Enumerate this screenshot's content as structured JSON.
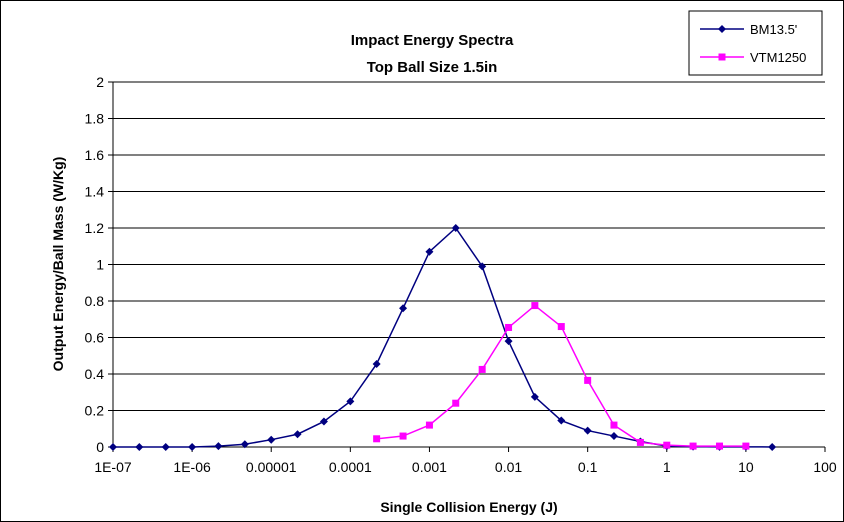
{
  "chart_data": {
    "type": "line",
    "title": "Impact Energy Spectra",
    "subtitle": "Top Ball Size 1.5in",
    "xlabel": "Single Collision Energy (J)",
    "ylabel": "Output Energy/Ball Mass (W/Kg)",
    "x_scale": "log",
    "xlim": [
      1e-07,
      100
    ],
    "ylim": [
      0,
      2
    ],
    "x_tick_labels": [
      "1E-07",
      "1E-06",
      "0.00001",
      "0.0001",
      "0.001",
      "0.01",
      "0.1",
      "1",
      "10",
      "100"
    ],
    "y_tick_labels": [
      "0",
      "0.2",
      "0.4",
      "0.6",
      "0.8",
      "1",
      "1.2",
      "1.4",
      "1.6",
      "1.8",
      "2"
    ],
    "grid": "horizontal",
    "legend_position": "top-right",
    "series": [
      {
        "name": "BM13.5'",
        "color": "#000080",
        "marker": "diamond",
        "x": [
          1e-07,
          2.15e-07,
          4.64e-07,
          1e-06,
          2.15e-06,
          4.64e-06,
          1e-05,
          2.15e-05,
          4.64e-05,
          0.0001,
          0.000215,
          0.000464,
          0.001,
          0.00215,
          0.00464,
          0.01,
          0.0215,
          0.0464,
          0.1,
          0.215,
          0.464,
          1,
          2.15,
          4.64,
          10,
          21.5
        ],
        "y": [
          0,
          0,
          0,
          0,
          0.005,
          0.015,
          0.04,
          0.07,
          0.14,
          0.25,
          0.455,
          0.76,
          1.07,
          1.2,
          0.99,
          0.58,
          0.275,
          0.145,
          0.09,
          0.06,
          0.03,
          0.005,
          0.002,
          0.001,
          0.001,
          0
        ]
      },
      {
        "name": "VTM1250",
        "color": "#FF00FF",
        "marker": "square",
        "x": [
          0.000215,
          0.000464,
          0.001,
          0.00215,
          0.00464,
          0.01,
          0.0215,
          0.0464,
          0.1,
          0.215,
          0.464,
          1,
          2.15,
          4.64,
          10
        ],
        "y": [
          0.045,
          0.06,
          0.12,
          0.24,
          0.425,
          0.655,
          0.775,
          0.66,
          0.365,
          0.12,
          0.025,
          0.01,
          0.005,
          0.005,
          0.005
        ]
      }
    ]
  }
}
